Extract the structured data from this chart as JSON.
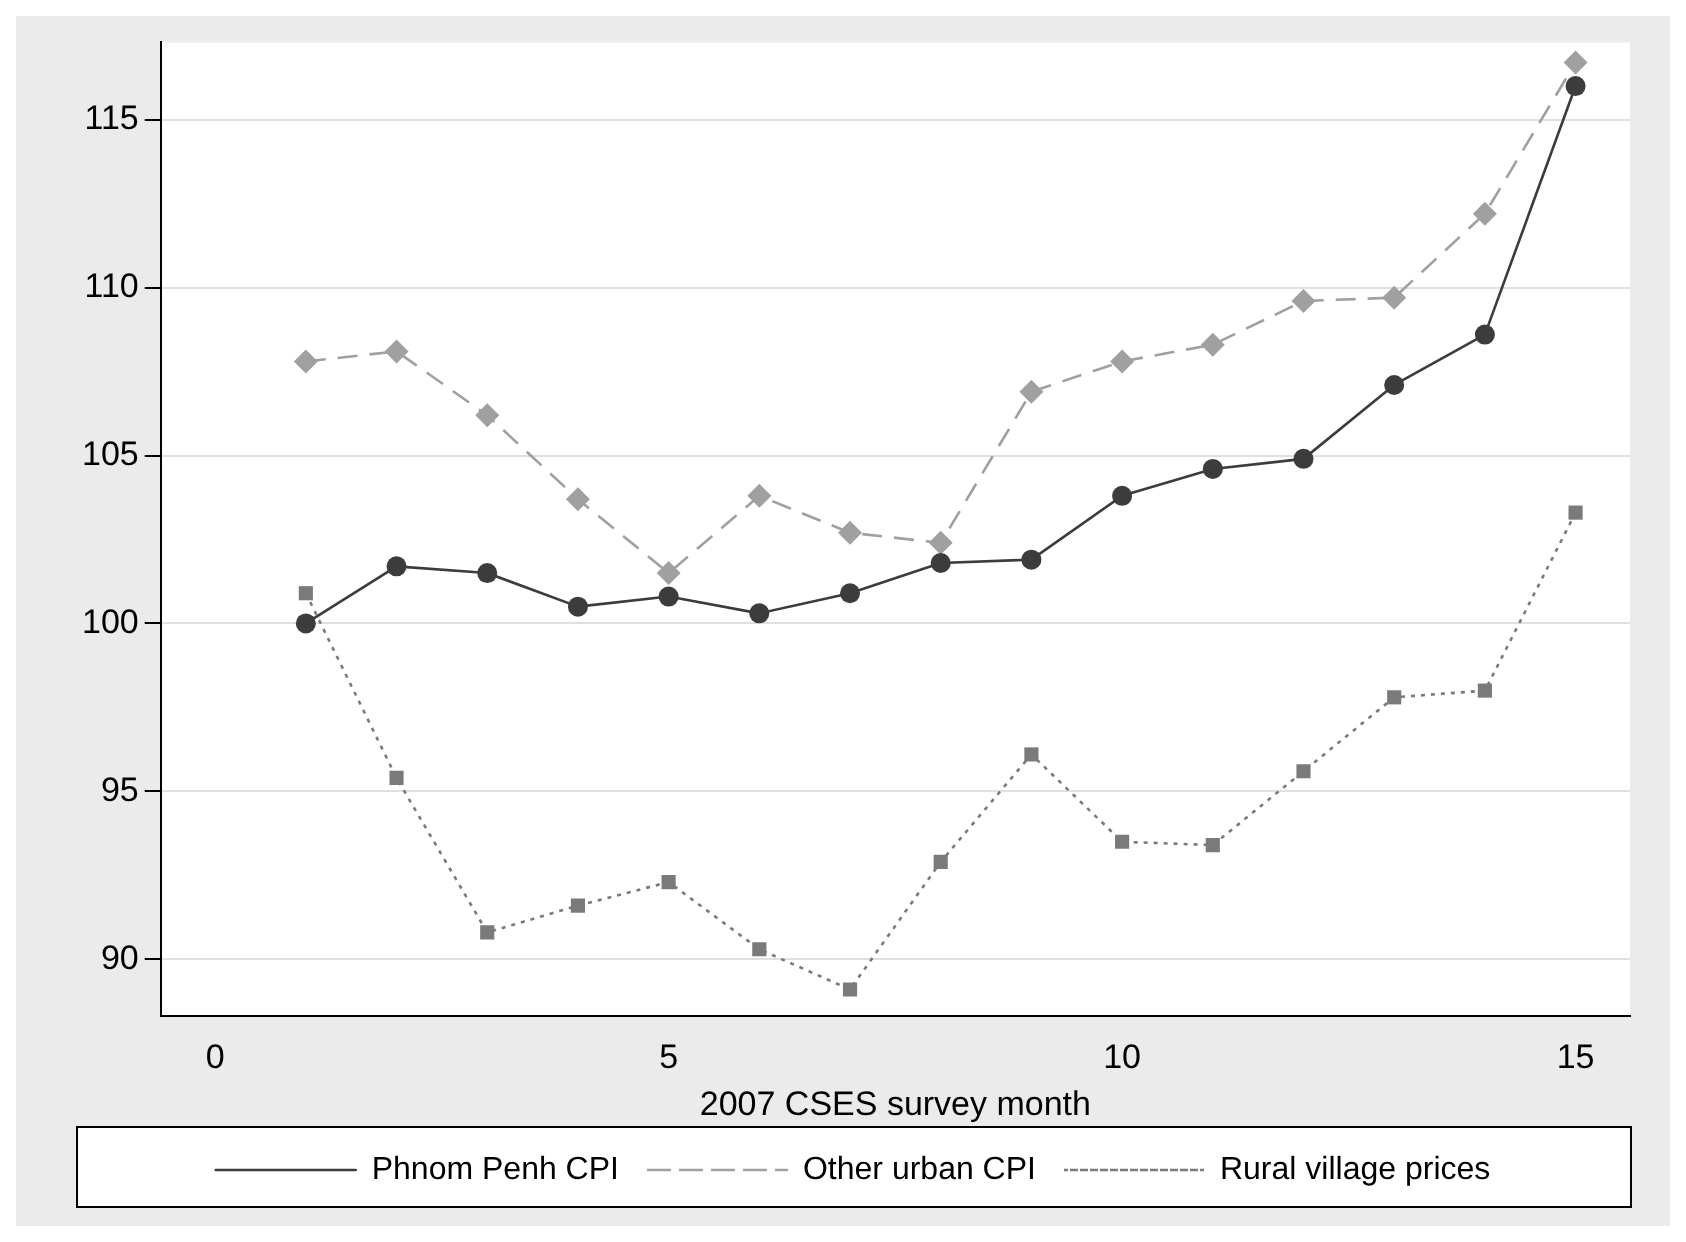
{
  "chart_data": {
    "type": "line",
    "xlabel": "2007 CSES survey month",
    "x": [
      1,
      2,
      3,
      4,
      5,
      6,
      7,
      8,
      9,
      10,
      11,
      12,
      13,
      14,
      15
    ],
    "xlim": [
      -0.6,
      15.6
    ],
    "xticks": [
      0,
      5,
      10,
      15
    ],
    "ylim": [
      88.3,
      117.3
    ],
    "yticks": [
      90,
      95,
      100,
      105,
      110,
      115
    ],
    "grid": "y",
    "legend": "bottom",
    "series": [
      {
        "name": "Phnom Penh CPI",
        "color": "#3c3c3c",
        "marker": "circle",
        "line_style": "solid",
        "values": [
          100,
          101.7,
          101.5,
          100.5,
          100.8,
          100.3,
          100.9,
          101.8,
          101.9,
          103.8,
          104.6,
          104.9,
          107.1,
          108.6,
          116.0
        ]
      },
      {
        "name": "Other urban CPI",
        "color": "#a0a0a0",
        "marker": "diamond",
        "line_style": "dashed",
        "values": [
          107.8,
          108.1,
          106.2,
          103.7,
          101.5,
          103.8,
          102.7,
          102.4,
          106.9,
          107.8,
          108.3,
          109.6,
          109.7,
          112.2,
          116.7
        ]
      },
      {
        "name": "Rural village prices",
        "color": "#7a7a7a",
        "marker": "square",
        "line_style": "dotted",
        "values": [
          100.9,
          95.4,
          90.8,
          91.6,
          92.3,
          90.3,
          89.1,
          92.9,
          96.1,
          93.5,
          93.4,
          95.6,
          97.8,
          98.0,
          103.3
        ]
      }
    ]
  }
}
